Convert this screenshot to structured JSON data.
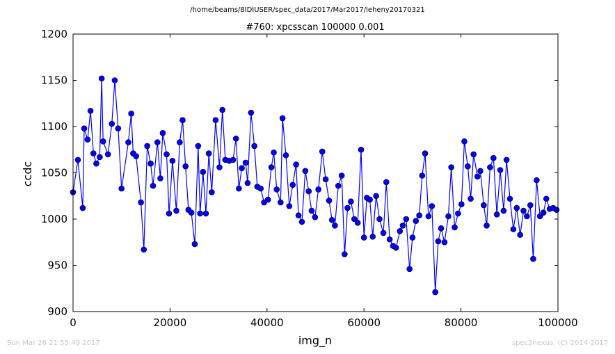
{
  "header": {
    "file_path": "/home/beams/8IDIUSER/spec_data/2017/Mar2017/leheny20170321"
  },
  "footer": {
    "timestamp": "Sun Mar 26 21:55:49 2017",
    "credit": "spec2nexus, (C) 2014-2017"
  },
  "chart_data": {
    "type": "line",
    "title": "#760: xpcsscan 100000 0.001",
    "xlabel": "img_n",
    "ylabel": "ccdc",
    "xlim": [
      0,
      100000
    ],
    "ylim": [
      900,
      1200
    ],
    "xticks": [
      0,
      20000,
      40000,
      60000,
      80000,
      100000
    ],
    "xtick_labels": [
      "0",
      "20000",
      "40000",
      "60000",
      "80000",
      "100000"
    ],
    "yticks": [
      900,
      950,
      1000,
      1050,
      1100,
      1150,
      1200
    ],
    "ytick_labels": [
      "900",
      "950",
      "1000",
      "1050",
      "1100",
      "1150",
      "1200"
    ],
    "grid": false,
    "series": [
      {
        "color": "#0000ff",
        "marker": "circle",
        "x": [
          0,
          1000,
          2000,
          2300,
          3000,
          3600,
          4200,
          4800,
          5500,
          5900,
          6200,
          7200,
          8000,
          8600,
          9300,
          10000,
          11400,
          12000,
          12400,
          13000,
          14000,
          14600,
          15300,
          16000,
          16500,
          17400,
          18000,
          18500,
          19300,
          19800,
          20500,
          21300,
          22000,
          22600,
          23200,
          23800,
          24400,
          25100,
          25800,
          26200,
          26800,
          27400,
          28000,
          28600,
          29400,
          30200,
          30800,
          31400,
          32200,
          33000,
          33600,
          34200,
          34800,
          35600,
          36000,
          36700,
          37400,
          38000,
          38700,
          39400,
          40200,
          40900,
          41400,
          42000,
          42800,
          43200,
          43900,
          44600,
          45300,
          46000,
          46500,
          47200,
          47900,
          48600,
          49200,
          49900,
          50600,
          51400,
          52100,
          52800,
          53400,
          54000,
          54700,
          55400,
          56000,
          56600,
          57300,
          58000,
          58700,
          59400,
          60000,
          60600,
          61200,
          61800,
          62500,
          63200,
          64000,
          64600,
          65300,
          66000,
          66600,
          67400,
          68000,
          68700,
          69400,
          70000,
          70700,
          71400,
          72000,
          72600,
          73300,
          74000,
          74700,
          75300,
          75900,
          76600,
          77400,
          78000,
          78700,
          79400,
          80100,
          80700,
          81400,
          82000,
          82600,
          83400,
          84000,
          84700,
          85300,
          86000,
          86700,
          87400,
          88100,
          88800,
          89400,
          90100,
          90800,
          91500,
          92200,
          92900,
          93600,
          94300,
          94900,
          95600,
          96300,
          97000,
          97600,
          98300,
          99000,
          99700
        ],
        "y": [
          1029,
          1064,
          1012,
          1098,
          1086,
          1117,
          1071,
          1060,
          1067,
          1152,
          1084,
          1070,
          1103,
          1150,
          1098,
          1033,
          1083,
          1114,
          1071,
          1068,
          1018,
          967,
          1079,
          1060,
          1036,
          1083,
          1044,
          1093,
          1070,
          1006,
          1063,
          1009,
          1083,
          1107,
          1057,
          1010,
          1007,
          973,
          1079,
          1006,
          1051,
          1006,
          1071,
          1029,
          1107,
          1056,
          1118,
          1064,
          1063,
          1064,
          1087,
          1033,
          1055,
          1061,
          1039,
          1115,
          1079,
          1035,
          1033,
          1018,
          1021,
          1056,
          1072,
          1032,
          1018,
          1109,
          1069,
          1014,
          1037,
          1059,
          1004,
          997,
          1052,
          1030,
          1009,
          1002,
          1032,
          1073,
          1043,
          1020,
          999,
          993,
          1036,
          1047,
          962,
          1012,
          1019,
          1000,
          996,
          1075,
          980,
          1023,
          1021,
          981,
          1025,
          1000,
          985,
          1040,
          978,
          971,
          969,
          987,
          993,
          1000,
          946,
          980,
          998,
          1004,
          1047,
          1071,
          1003,
          1014,
          921,
          976,
          990,
          975,
          1003,
          1056,
          991,
          1006,
          1016,
          1084,
          1057,
          1022,
          1070,
          1046,
          1052,
          1015,
          993,
          1056,
          1066,
          1005,
          1053,
          1009,
          1064,
          1022,
          989,
          1012,
          983,
          1009,
          1003,
          1015,
          957,
          1042,
          1003,
          1007,
          1022,
          1011,
          1012,
          1010
        ]
      }
    ]
  }
}
